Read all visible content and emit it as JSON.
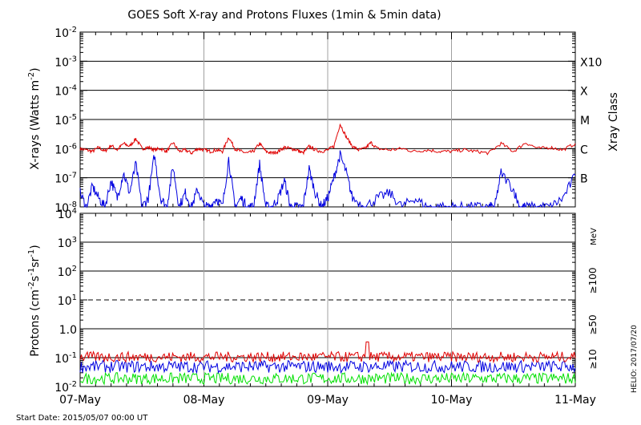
{
  "chart_data": [
    {
      "type": "line",
      "title": "GOES Soft X-ray and Protons Fluxes   (1min & 5min data)",
      "ylabel": "X-rays (Watts m⁻²)",
      "ylabel_parts": [
        "X-rays (Watts m",
        "-2",
        ")"
      ],
      "right_label": "Xray Class",
      "yscale": "log",
      "ylim": [
        1e-08,
        0.01
      ],
      "ytick_exponents": [
        -8,
        -7,
        -6,
        -5,
        -4,
        -3,
        -2
      ],
      "ytick_base": "10",
      "class_labels": [
        {
          "label": "X10",
          "exp": -3
        },
        {
          "label": "X",
          "exp": -4
        },
        {
          "label": "M",
          "exp": -5
        },
        {
          "label": "C",
          "exp": -6
        },
        {
          "label": "B",
          "exp": -7
        }
      ],
      "x_days": [
        "07-May",
        "08-May",
        "09-May",
        "10-May",
        "11-May"
      ],
      "xlim_days": [
        0,
        4
      ],
      "series": [
        {
          "color": "#e00000",
          "x_days": [
            0,
            0.05,
            0.1,
            0.15,
            0.2,
            0.25,
            0.3,
            0.35,
            0.4,
            0.45,
            0.5,
            0.55,
            0.6,
            0.65,
            0.7,
            0.75,
            0.8,
            0.85,
            0.9,
            0.95,
            1.0,
            1.05,
            1.1,
            1.15,
            1.2,
            1.25,
            1.3,
            1.35,
            1.4,
            1.45,
            1.5,
            1.55,
            1.6,
            1.65,
            1.7,
            1.75,
            1.8,
            1.85,
            1.9,
            1.95,
            2.0,
            2.05,
            2.1,
            2.15,
            2.2,
            2.25,
            2.3,
            2.35,
            2.4,
            2.5,
            2.6,
            2.7,
            2.8,
            2.9,
            3.0,
            3.1,
            3.2,
            3.3,
            3.4,
            3.5,
            3.6,
            3.7,
            3.8,
            3.9,
            4.0
          ],
          "y": [
            1e-06,
            9e-07,
            8e-07,
            1.1e-06,
            8e-07,
            1.3e-06,
            9e-07,
            1.5e-06,
            1.2e-06,
            2.2e-06,
            1e-06,
            1.1e-06,
            9e-07,
            1e-06,
            8e-07,
            1.6e-06,
            8e-07,
            9e-07,
            7e-07,
            1e-06,
            9e-07,
            8e-07,
            9e-07,
            8e-07,
            2.5e-06,
            1e-06,
            8e-07,
            7e-07,
            8e-07,
            1.5e-06,
            8e-07,
            7e-07,
            8e-07,
            1.1e-06,
            1e-06,
            9e-07,
            7e-07,
            1.2e-06,
            9e-07,
            8e-07,
            9e-07,
            1.2e-06,
            7e-06,
            2.5e-06,
            1.2e-06,
            9e-07,
            1e-06,
            1.6e-06,
            1e-06,
            9e-07,
            1e-06,
            8e-07,
            9e-07,
            8e-07,
            8e-07,
            9e-07,
            8e-07,
            7e-07,
            1.5e-06,
            8e-07,
            1.6e-06,
            1e-06,
            1.1e-06,
            9e-07,
            1.5e-06
          ]
        },
        {
          "color": "#0000e0",
          "x_days": [
            0,
            0.05,
            0.1,
            0.15,
            0.2,
            0.25,
            0.3,
            0.35,
            0.4,
            0.45,
            0.5,
            0.55,
            0.6,
            0.65,
            0.7,
            0.75,
            0.8,
            0.85,
            0.9,
            0.95,
            1.0,
            1.05,
            1.1,
            1.15,
            1.2,
            1.25,
            1.3,
            1.35,
            1.4,
            1.45,
            1.5,
            1.55,
            1.6,
            1.65,
            1.7,
            1.75,
            1.8,
            1.85,
            1.9,
            1.95,
            2.0,
            2.05,
            2.1,
            2.15,
            2.2,
            2.3,
            2.4,
            2.5,
            2.6,
            2.7,
            2.8,
            2.9,
            3.0,
            3.1,
            3.2,
            3.3,
            3.35,
            3.4,
            3.5,
            3.55,
            3.6,
            3.7,
            3.8,
            3.9,
            4.0
          ],
          "y": [
            3e-08,
            1e-08,
            5e-08,
            2e-08,
            1e-08,
            8e-08,
            2e-08,
            1.5e-07,
            3e-08,
            3e-07,
            1e-08,
            2e-08,
            6e-07,
            2e-08,
            1e-08,
            2.5e-07,
            1e-08,
            3e-08,
            1e-08,
            4e-08,
            1e-08,
            1e-08,
            2e-08,
            1e-08,
            4.5e-07,
            1e-08,
            2e-08,
            1e-08,
            1e-08,
            3e-07,
            1e-08,
            1e-08,
            2e-08,
            8e-08,
            1e-08,
            1e-08,
            1e-08,
            2e-07,
            3e-08,
            1e-08,
            2e-08,
            1e-07,
            6e-07,
            1.5e-07,
            2e-08,
            1e-08,
            2e-08,
            3e-08,
            1e-08,
            2e-08,
            1e-08,
            1e-08,
            1e-08,
            1e-08,
            1e-08,
            1e-08,
            1e-08,
            1.5e-07,
            4e-08,
            1e-08,
            1e-08,
            1e-08,
            1e-08,
            2e-08,
            1.2e-07
          ]
        }
      ]
    },
    {
      "type": "line",
      "ylabel": "Protons (cm⁻²s⁻¹sr⁻¹)",
      "ylabel_parts": [
        "Protons (cm",
        "-2",
        "s",
        "-1",
        "sr",
        "-1",
        ")"
      ],
      "yscale": "log",
      "ylim": [
        0.01,
        10000.0
      ],
      "ytick_labels": [
        "10-2",
        "10-1",
        "1.0",
        "101",
        "102",
        "103",
        "104"
      ],
      "ytick_exponents": [
        -2,
        -1,
        0,
        1,
        2,
        3,
        4
      ],
      "threshold": {
        "value": 10,
        "style": "dashed"
      },
      "energy_unit": "MeV",
      "x_days": [
        "07-May",
        "08-May",
        "09-May",
        "10-May",
        "11-May"
      ],
      "series": [
        {
          "name": "≥10",
          "color": "#e00000",
          "level": 0.09,
          "noise": [
            0.07,
            0.16
          ],
          "spike": {
            "x_day": 2.32,
            "y": 0.35
          }
        },
        {
          "name": "≥50",
          "color": "#0000e0",
          "level": 0.045,
          "noise": [
            0.03,
            0.08
          ]
        },
        {
          "name": "≥100",
          "color": "#00e000",
          "level": 0.018,
          "noise": [
            0.012,
            0.03
          ]
        }
      ]
    }
  ],
  "footer": {
    "start_date": "Start Date: 2015/05/07 00:00 UT",
    "credit": "HELIO: 2017/07/20"
  },
  "colors": {
    "axis": "#000000",
    "xray_long": "#e00000",
    "xray_short": "#0000e0",
    "p10": "#e00000",
    "p50": "#0000e0",
    "p100": "#00e000",
    "day_grid": "#a0a0a0"
  }
}
